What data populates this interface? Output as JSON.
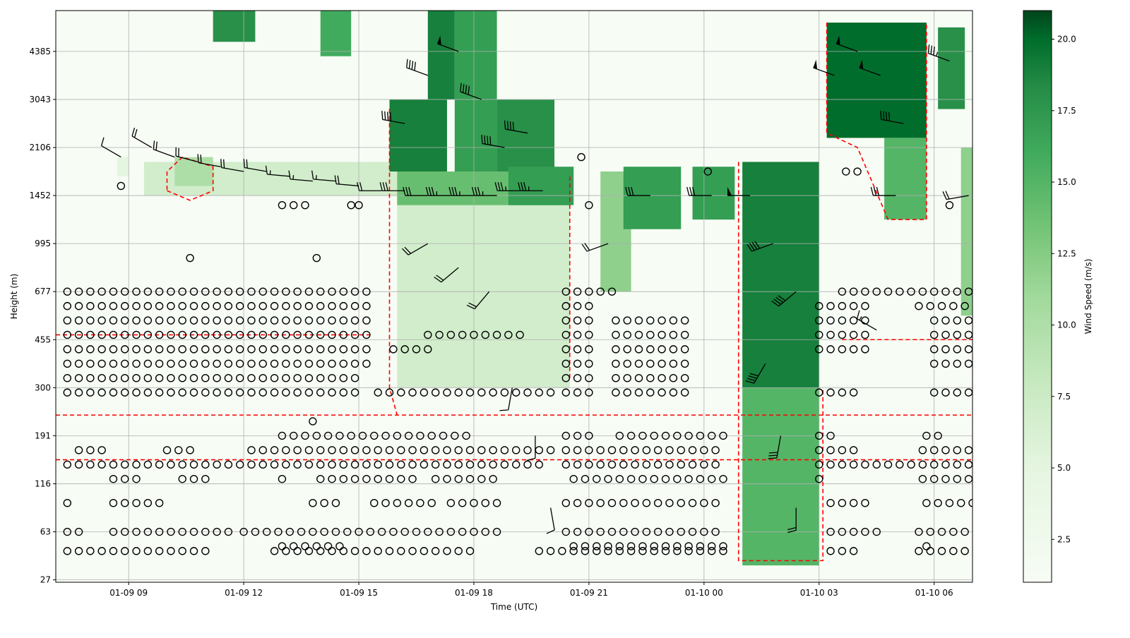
{
  "chart_data": {
    "type": "heatmap",
    "title": "",
    "xlabel": "Time (UTC)",
    "ylabel": "Height (m)",
    "x_units": "hours since 01-09 00 UTC",
    "xlim": [
      7.1,
      31.0
    ],
    "x_ticks": [
      {
        "value": 9,
        "label": "01-09 09"
      },
      {
        "value": 12,
        "label": "01-09 12"
      },
      {
        "value": 15,
        "label": "01-09 15"
      },
      {
        "value": 18,
        "label": "01-09 18"
      },
      {
        "value": 21,
        "label": "01-09 21"
      },
      {
        "value": 24,
        "label": "01-10 00"
      },
      {
        "value": 27,
        "label": "01-10 03"
      },
      {
        "value": 30,
        "label": "01-10 06"
      }
    ],
    "y_axis_note": "height levels shown on an index axis; tick i = listed height",
    "ylim": [
      -0.05,
      11.85
    ],
    "y_ticks": [
      "27",
      "63",
      "116",
      "191",
      "300",
      "455",
      "677",
      "995",
      "1452",
      "2106",
      "3043",
      "4385"
    ],
    "grid": true,
    "colorbar": {
      "label": "Wind Speed (m/s)",
      "range": [
        1,
        21
      ],
      "ticks": [
        "2.5",
        "5.0",
        "7.5",
        "10.0",
        "12.5",
        "15.0",
        "17.5",
        "20.0"
      ],
      "colormap": "Greens"
    },
    "speed_regions": [
      {
        "t": [
          8.7,
          9.0
        ],
        "lev": [
          8.4,
          8.8
        ],
        "speed": 5
      },
      {
        "t": [
          9.4,
          16.0
        ],
        "lev": [
          8.0,
          8.7
        ],
        "speed": 7
      },
      {
        "t": [
          10.2,
          11.2
        ],
        "lev": [
          8.2,
          8.8
        ],
        "speed": 10
      },
      {
        "t": [
          11.2,
          12.3
        ],
        "lev": [
          11.2,
          11.95
        ],
        "speed": 18
      },
      {
        "t": [
          14.0,
          14.8
        ],
        "lev": [
          10.9,
          11.9
        ],
        "speed": 16
      },
      {
        "t": [
          16.0,
          20.5
        ],
        "lev": [
          4.0,
          8.0
        ],
        "speed": 7
      },
      {
        "t": [
          16.0,
          20.5
        ],
        "lev": [
          7.8,
          8.5
        ],
        "speed": 14
      },
      {
        "t": [
          15.8,
          17.3
        ],
        "lev": [
          8.5,
          10.0
        ],
        "speed": 19
      },
      {
        "t": [
          16.8,
          17.5
        ],
        "lev": [
          10.0,
          11.9
        ],
        "speed": 19
      },
      {
        "t": [
          17.5,
          18.6
        ],
        "lev": [
          8.5,
          11.9
        ],
        "speed": 17
      },
      {
        "t": [
          18.6,
          20.1
        ],
        "lev": [
          8.5,
          10.0
        ],
        "speed": 18
      },
      {
        "t": [
          18.9,
          20.6
        ],
        "lev": [
          7.8,
          8.6
        ],
        "speed": 17
      },
      {
        "t": [
          21.3,
          22.1
        ],
        "lev": [
          6.0,
          8.5
        ],
        "speed": 12
      },
      {
        "t": [
          21.9,
          23.4
        ],
        "lev": [
          7.3,
          8.6
        ],
        "speed": 17
      },
      {
        "t": [
          23.7,
          24.8
        ],
        "lev": [
          7.5,
          8.6
        ],
        "speed": 17
      },
      {
        "t": [
          25.0,
          27.0
        ],
        "lev": [
          0.3,
          4.0
        ],
        "speed": 15
      },
      {
        "t": [
          25.0,
          27.0
        ],
        "lev": [
          4.0,
          8.7
        ],
        "speed": 19
      },
      {
        "t": [
          27.2,
          29.8
        ],
        "lev": [
          9.2,
          11.6
        ],
        "speed": 20
      },
      {
        "t": [
          28.7,
          29.8
        ],
        "lev": [
          7.5,
          9.2
        ],
        "speed": 15
      },
      {
        "t": [
          30.1,
          30.8
        ],
        "lev": [
          9.8,
          11.5
        ],
        "speed": 18
      },
      {
        "t": [
          30.7,
          31.0
        ],
        "lev": [
          5.5,
          9.0
        ],
        "speed": 12
      }
    ],
    "calm_rows": [
      {
        "lev": 6.0,
        "t": [
          [
            7.4,
            15.4
          ],
          [
            20.4,
            21.6
          ],
          [
            27.6,
            31.0
          ]
        ]
      },
      {
        "lev": 5.7,
        "t": [
          [
            7.4,
            15.3
          ],
          [
            20.4,
            21.0
          ],
          [
            27.0,
            28.2
          ],
          [
            29.6,
            31.0
          ]
        ]
      },
      {
        "lev": 5.4,
        "t": [
          [
            7.4,
            15.3
          ],
          [
            20.4,
            21.0
          ],
          [
            21.7,
            23.6
          ],
          [
            27.0,
            28.4
          ],
          [
            30.0,
            31.0
          ]
        ]
      },
      {
        "lev": 5.1,
        "t": [
          [
            7.4,
            15.3
          ],
          [
            16.8,
            19.2
          ],
          [
            20.4,
            21.2
          ],
          [
            21.7,
            23.6
          ],
          [
            27.0,
            28.4
          ],
          [
            30.0,
            31.0
          ]
        ]
      },
      {
        "lev": 4.8,
        "t": [
          [
            7.4,
            15.3
          ],
          [
            15.9,
            17.0
          ],
          [
            20.4,
            21.2
          ],
          [
            21.7,
            23.6
          ],
          [
            27.0,
            28.4
          ],
          [
            30.0,
            31.0
          ]
        ]
      },
      {
        "lev": 4.5,
        "t": [
          [
            7.4,
            15.3
          ],
          [
            20.4,
            21.2
          ],
          [
            21.7,
            23.6
          ],
          [
            30.0,
            31.0
          ]
        ]
      },
      {
        "lev": 4.2,
        "t": [
          [
            7.4,
            15.0
          ],
          [
            20.4,
            21.2
          ],
          [
            21.7,
            23.6
          ]
        ]
      },
      {
        "lev": 3.9,
        "t": [
          [
            7.4,
            15.0
          ],
          [
            20.4,
            21.2
          ],
          [
            21.7,
            23.6
          ]
        ]
      },
      {
        "lev": 3.9,
        "t": [
          [
            15.5,
            20.0
          ],
          [
            27.0,
            28.0
          ],
          [
            30.0,
            31.0
          ]
        ]
      },
      {
        "lev": 3.3,
        "t": [
          [
            13.8,
            14.0
          ]
        ]
      },
      {
        "lev": 3.0,
        "t": [
          [
            13.0,
            18.0
          ],
          [
            20.4,
            21.0
          ],
          [
            21.8,
            24.5
          ],
          [
            27.0,
            27.3
          ],
          [
            29.8,
            30.1
          ]
        ]
      },
      {
        "lev": 2.7,
        "t": [
          [
            7.7,
            8.5
          ],
          [
            10.0,
            10.8
          ],
          [
            12.2,
            20.0
          ],
          [
            20.4,
            24.5
          ],
          [
            27.0,
            28.0
          ],
          [
            29.7,
            31.0
          ]
        ]
      },
      {
        "lev": 2.4,
        "t": [
          [
            7.4,
            19.7
          ],
          [
            20.4,
            24.5
          ],
          [
            27.0,
            31.0
          ]
        ]
      },
      {
        "lev": 2.1,
        "t": [
          [
            8.6,
            9.2
          ],
          [
            10.4,
            11.0
          ],
          [
            13.0,
            13.2
          ],
          [
            14.0,
            16.4
          ],
          [
            17.0,
            18.6
          ],
          [
            20.6,
            24.5
          ],
          [
            27.0,
            27.1
          ],
          [
            29.7,
            31.0
          ]
        ]
      },
      {
        "lev": 1.6,
        "t": [
          [
            7.4,
            7.6
          ],
          [
            8.6,
            10.0
          ],
          [
            13.8,
            14.6
          ],
          [
            15.4,
            17.0
          ],
          [
            17.4,
            18.6
          ],
          [
            20.4,
            24.5
          ],
          [
            27.3,
            28.2
          ],
          [
            29.8,
            31.0
          ]
        ]
      },
      {
        "lev": 1.0,
        "t": [
          [
            7.4,
            7.8
          ],
          [
            8.6,
            11.6
          ],
          [
            12.0,
            18.6
          ],
          [
            20.4,
            24.5
          ],
          [
            27.3,
            28.6
          ],
          [
            29.6,
            31.0
          ]
        ]
      },
      {
        "lev": 0.7,
        "t": [
          [
            13.0,
            14.6
          ],
          [
            20.6,
            24.5
          ],
          [
            29.8,
            30.0
          ]
        ]
      },
      {
        "lev": 0.6,
        "t": [
          [
            7.4,
            11.0
          ],
          [
            12.8,
            18.0
          ],
          [
            19.7,
            24.5
          ],
          [
            27.3,
            28.0
          ],
          [
            29.6,
            31.0
          ]
        ]
      }
    ],
    "special_calm": [
      {
        "t": 8.8,
        "lev": 8.2
      },
      {
        "t": 10.6,
        "lev": 6.7
      },
      {
        "t": 13.9,
        "lev": 6.7
      },
      {
        "t": 13.0,
        "lev": 7.8
      },
      {
        "t": 13.3,
        "lev": 7.8
      },
      {
        "t": 13.6,
        "lev": 7.8
      },
      {
        "t": 14.8,
        "lev": 7.8
      },
      {
        "t": 15.0,
        "lev": 7.8
      },
      {
        "t": 20.8,
        "lev": 8.8
      },
      {
        "t": 21.0,
        "lev": 7.8
      },
      {
        "t": 24.1,
        "lev": 8.5
      },
      {
        "t": 27.7,
        "lev": 8.5
      },
      {
        "t": 28.0,
        "lev": 8.5
      },
      {
        "t": 30.4,
        "lev": 7.8
      }
    ],
    "barbs": [
      {
        "t": 8.8,
        "lev": 8.8,
        "speed": 5,
        "dir": 300
      },
      {
        "t": 9.6,
        "lev": 9.0,
        "speed": 10,
        "dir": 300
      },
      {
        "t": 10.2,
        "lev": 8.8,
        "speed": 12,
        "dir": 290
      },
      {
        "t": 10.8,
        "lev": 8.7,
        "speed": 12,
        "dir": 285
      },
      {
        "t": 11.4,
        "lev": 8.6,
        "speed": 12,
        "dir": 280
      },
      {
        "t": 12.0,
        "lev": 8.5,
        "speed": 10,
        "dir": 280
      },
      {
        "t": 12.6,
        "lev": 8.5,
        "speed": 10,
        "dir": 280
      },
      {
        "t": 13.2,
        "lev": 8.4,
        "speed": 8,
        "dir": 275
      },
      {
        "t": 13.8,
        "lev": 8.3,
        "speed": 8,
        "dir": 275
      },
      {
        "t": 14.4,
        "lev": 8.3,
        "speed": 8,
        "dir": 275
      },
      {
        "t": 15.0,
        "lev": 8.2,
        "speed": 10,
        "dir": 275
      },
      {
        "t": 15.6,
        "lev": 8.1,
        "speed": 12,
        "dir": 270
      },
      {
        "t": 16.2,
        "lev": 8.1,
        "speed": 15,
        "dir": 270
      },
      {
        "t": 16.8,
        "lev": 8.0,
        "speed": 15,
        "dir": 270
      },
      {
        "t": 17.4,
        "lev": 8.0,
        "speed": 18,
        "dir": 270
      },
      {
        "t": 18.0,
        "lev": 8.0,
        "speed": 18,
        "dir": 270
      },
      {
        "t": 18.6,
        "lev": 8.0,
        "speed": 18,
        "dir": 270
      },
      {
        "t": 19.2,
        "lev": 8.1,
        "speed": 18,
        "dir": 270
      },
      {
        "t": 19.8,
        "lev": 8.1,
        "speed": 18,
        "dir": 270
      },
      {
        "t": 16.2,
        "lev": 9.5,
        "speed": 20,
        "dir": 280
      },
      {
        "t": 16.8,
        "lev": 10.5,
        "speed": 20,
        "dir": 290
      },
      {
        "t": 17.6,
        "lev": 11.0,
        "speed": 25,
        "dir": 290
      },
      {
        "t": 18.2,
        "lev": 10.0,
        "speed": 20,
        "dir": 290
      },
      {
        "t": 18.8,
        "lev": 9.0,
        "speed": 20,
        "dir": 280
      },
      {
        "t": 19.4,
        "lev": 9.3,
        "speed": 20,
        "dir": 280
      },
      {
        "t": 16.8,
        "lev": 7.0,
        "speed": 10,
        "dir": 240
      },
      {
        "t": 17.6,
        "lev": 6.5,
        "speed": 10,
        "dir": 230
      },
      {
        "t": 18.4,
        "lev": 6.0,
        "speed": 10,
        "dir": 220
      },
      {
        "t": 19.0,
        "lev": 4.0,
        "speed": 5,
        "dir": 190
      },
      {
        "t": 19.6,
        "lev": 3.0,
        "speed": 5,
        "dir": 180
      },
      {
        "t": 20.0,
        "lev": 1.5,
        "speed": 5,
        "dir": 170
      },
      {
        "t": 21.5,
        "lev": 7.0,
        "speed": 12,
        "dir": 250
      },
      {
        "t": 22.6,
        "lev": 8.0,
        "speed": 15,
        "dir": 270
      },
      {
        "t": 24.2,
        "lev": 8.0,
        "speed": 15,
        "dir": 270
      },
      {
        "t": 25.2,
        "lev": 8.0,
        "speed": 25,
        "dir": 270
      },
      {
        "t": 25.8,
        "lev": 7.0,
        "speed": 20,
        "dir": 250
      },
      {
        "t": 26.4,
        "lev": 6.0,
        "speed": 20,
        "dir": 230
      },
      {
        "t": 25.6,
        "lev": 4.5,
        "speed": 20,
        "dir": 210
      },
      {
        "t": 26.0,
        "lev": 3.0,
        "speed": 15,
        "dir": 190
      },
      {
        "t": 26.4,
        "lev": 1.5,
        "speed": 10,
        "dir": 180
      },
      {
        "t": 27.4,
        "lev": 10.5,
        "speed": 25,
        "dir": 290
      },
      {
        "t": 28.0,
        "lev": 11.0,
        "speed": 25,
        "dir": 290
      },
      {
        "t": 28.6,
        "lev": 10.5,
        "speed": 25,
        "dir": 290
      },
      {
        "t": 29.2,
        "lev": 9.5,
        "speed": 20,
        "dir": 280
      },
      {
        "t": 29.0,
        "lev": 8.0,
        "speed": 15,
        "dir": 270
      },
      {
        "t": 30.4,
        "lev": 10.8,
        "speed": 18,
        "dir": 290
      },
      {
        "t": 30.9,
        "lev": 8.0,
        "speed": 12,
        "dir": 260
      },
      {
        "t": 28.5,
        "lev": 5.2,
        "speed": 8,
        "dir": 300
      }
    ],
    "contours": [
      {
        "points": [
          [
            7.1,
            3.43
          ],
          [
            31.0,
            3.43
          ]
        ]
      },
      {
        "points": [
          [
            7.1,
            2.5
          ],
          [
            31.0,
            2.5
          ]
        ]
      },
      {
        "points": [
          [
            7.1,
            5.1
          ],
          [
            15.3,
            5.1
          ]
        ]
      },
      {
        "points": [
          [
            27.6,
            5.0
          ],
          [
            31.0,
            5.0
          ]
        ]
      },
      {
        "points": [
          [
            15.8,
            9.8
          ],
          [
            15.8,
            4.0
          ],
          [
            16.0,
            3.43
          ]
        ]
      },
      {
        "points": [
          [
            20.5,
            8.4
          ],
          [
            20.5,
            4.2
          ]
        ]
      },
      {
        "points": [
          [
            24.9,
            8.7
          ],
          [
            24.9,
            0.4
          ],
          [
            27.1,
            0.4
          ],
          [
            27.1,
            4.0
          ]
        ]
      },
      {
        "points": [
          [
            27.2,
            11.6
          ],
          [
            27.2,
            9.3
          ],
          [
            28.0,
            9.0
          ],
          [
            28.8,
            7.5
          ],
          [
            29.8,
            7.5
          ],
          [
            29.8,
            11.6
          ]
        ]
      },
      {
        "points": [
          [
            10.0,
            8.1
          ],
          [
            10.6,
            7.9
          ],
          [
            11.2,
            8.1
          ],
          [
            11.2,
            8.6
          ],
          [
            10.4,
            8.8
          ],
          [
            10.0,
            8.5
          ],
          [
            10.0,
            8.1
          ]
        ]
      }
    ]
  }
}
